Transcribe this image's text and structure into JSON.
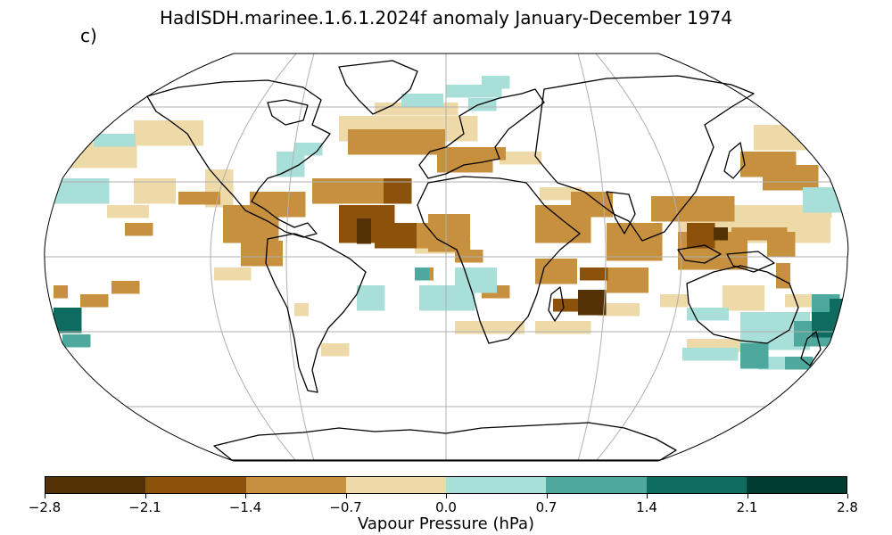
{
  "title": "HadISDH.marinee.1.6.1.2024f anomaly January-December 1974",
  "panel_label": "c)",
  "colorbar": {
    "label": "Vapour Pressure (hPa)",
    "ticks": [
      "−2.8",
      "−2.1",
      "−1.4",
      "−0.7",
      "0.0",
      "0.7",
      "1.4",
      "2.1",
      "2.8"
    ],
    "colors": [
      "#543005",
      "#8c510a",
      "#c7903f",
      "#eed9a8",
      "#a8dfd8",
      "#4fa89d",
      "#0e6b60",
      "#003c30"
    ]
  },
  "map": {
    "projection": "Robinson",
    "ocean_color": "#ffffff",
    "grid_color": "#b0b0b0",
    "coast_color": "#000000"
  }
}
